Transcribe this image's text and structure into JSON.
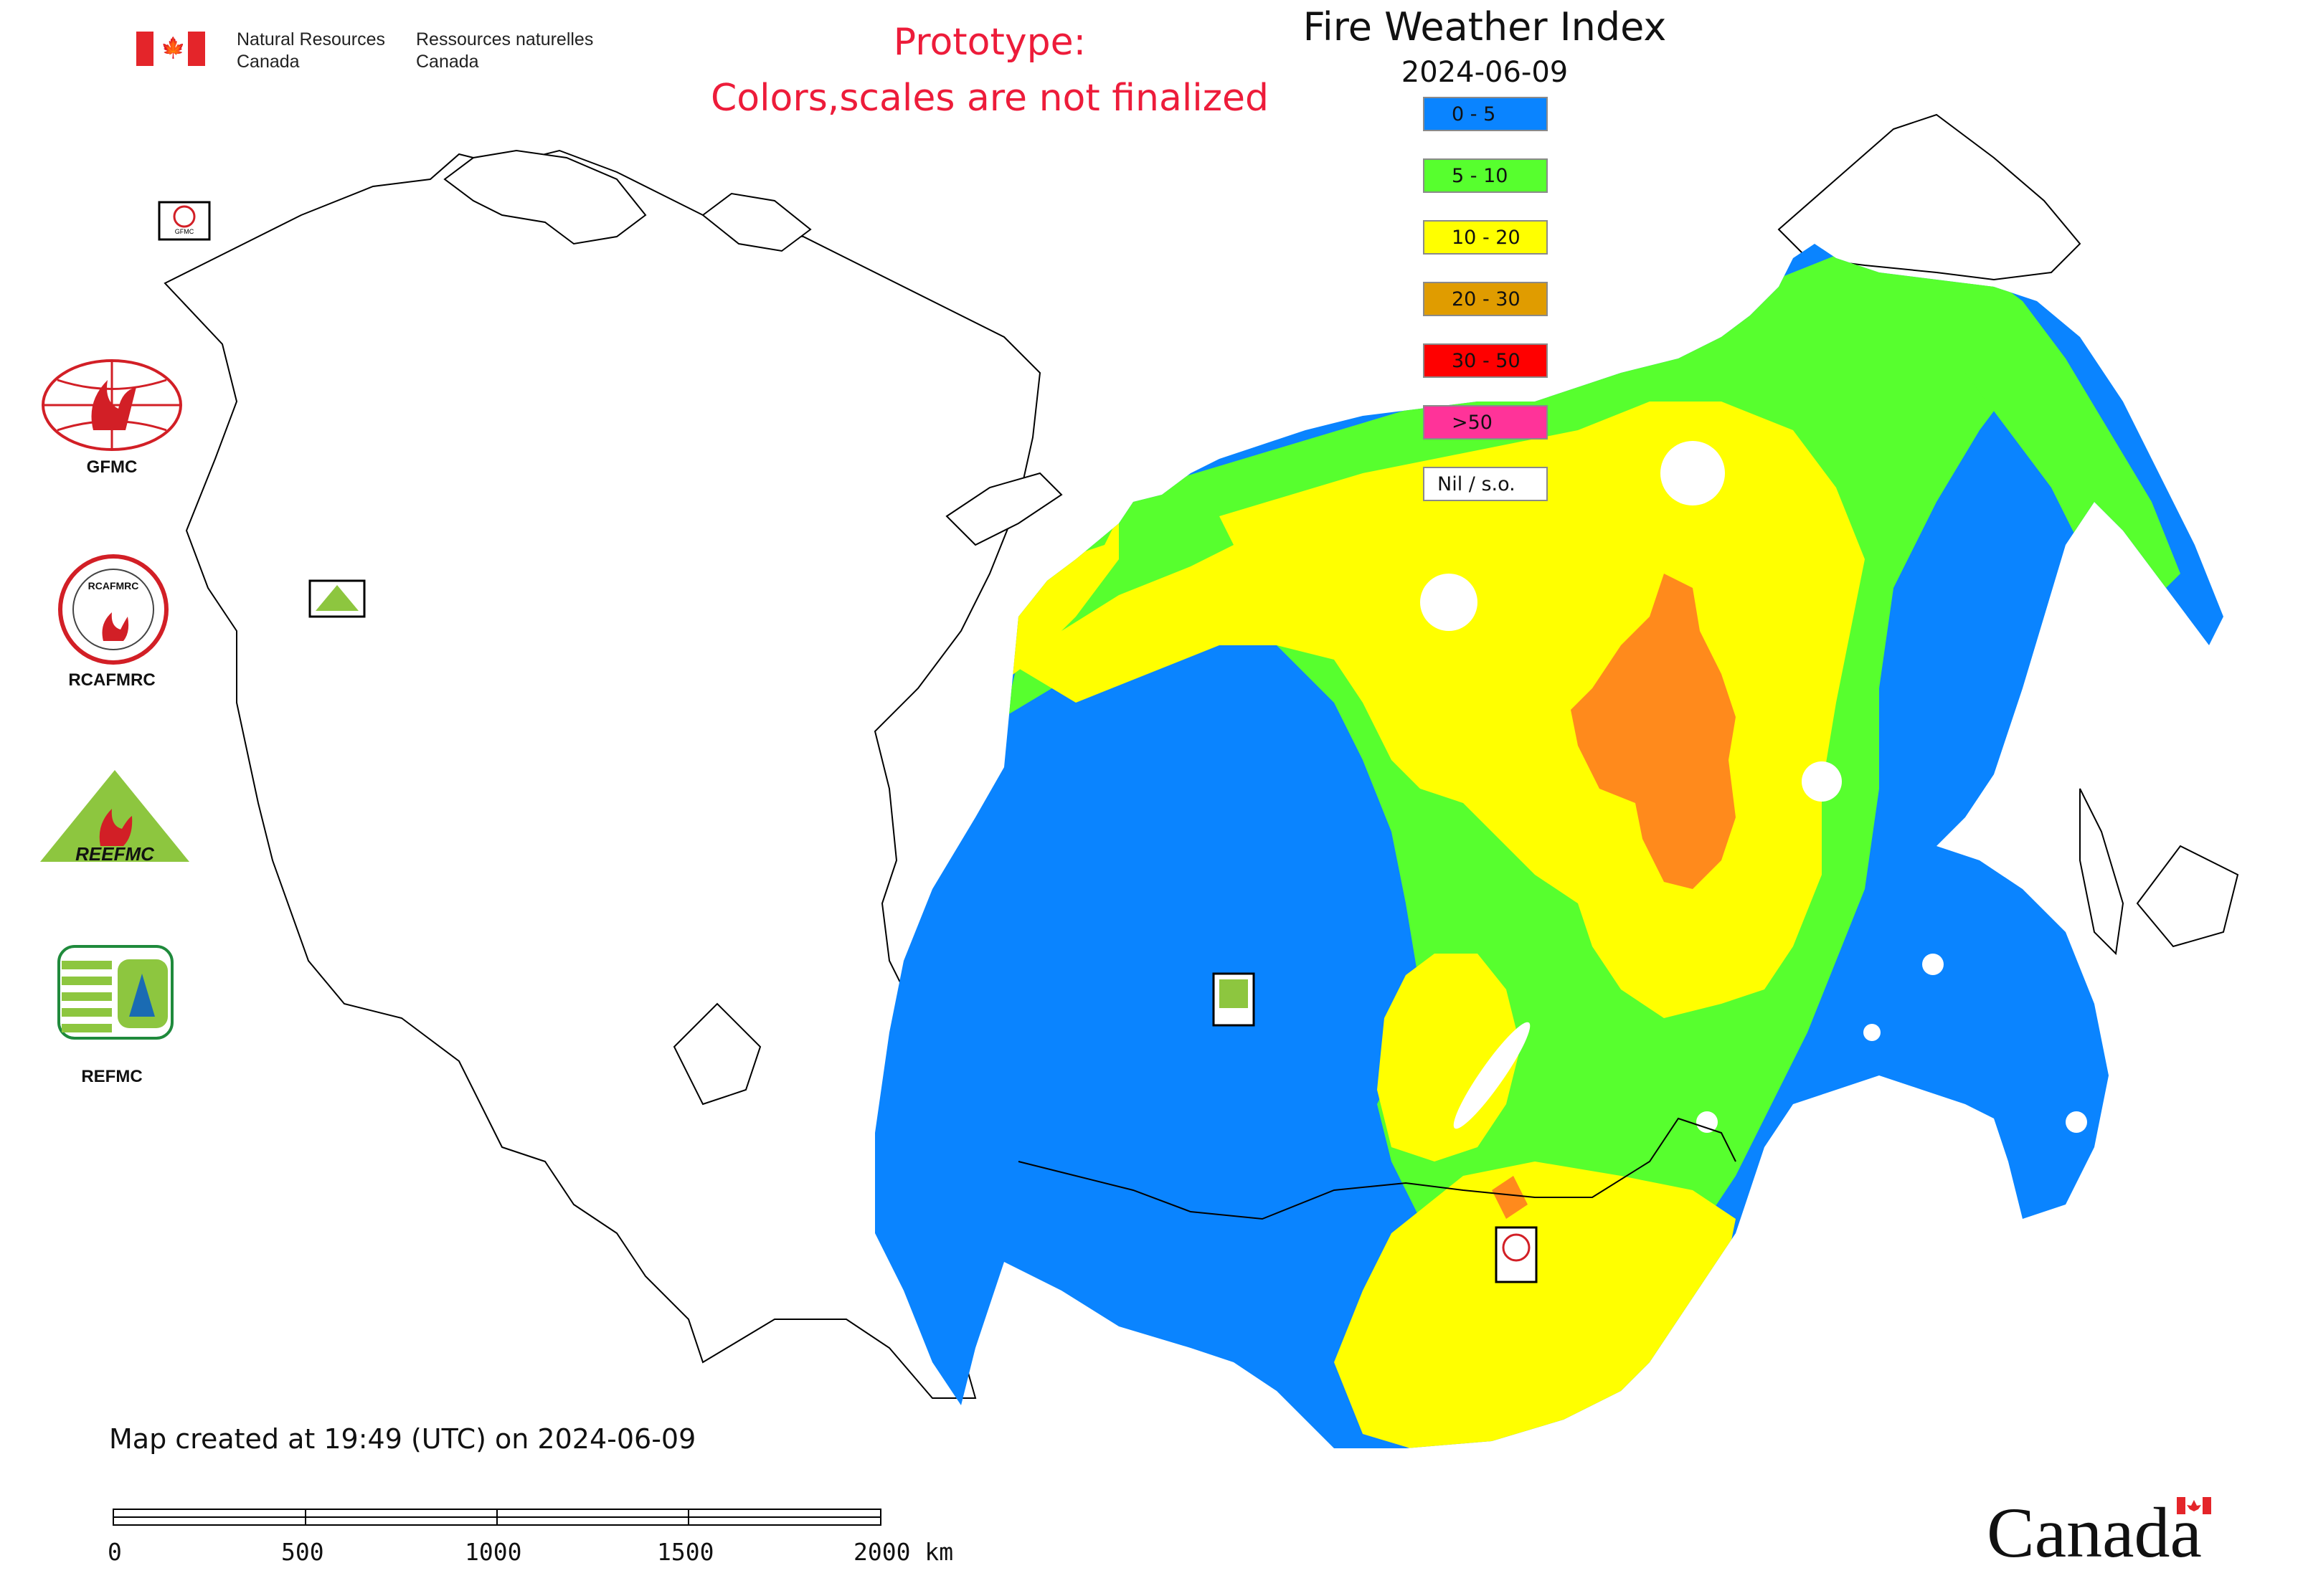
{
  "header": {
    "department_en": "Natural Resources\nCanada",
    "department_fr": "Ressources naturelles\nCanada",
    "prototype_note_line1": "Prototype:",
    "prototype_note_line2": "Colors,scales are not finalized"
  },
  "map": {
    "title": "Fire Weather Index",
    "date": "2024-06-09",
    "footnote": "Map created at 19:49 (UTC) on 2024-06-09",
    "basemap_color": "#ffffff",
    "boundary_color": "#000000"
  },
  "legend": {
    "items": [
      {
        "label": "0 - 5",
        "color": "#0a84ff"
      },
      {
        "label": "5 - 10",
        "color": "#57ff2e"
      },
      {
        "label": "10 - 20",
        "color": "#ffff00"
      },
      {
        "label": "20 - 30",
        "color": "#e09c00"
      },
      {
        "label": "30 - 50",
        "color": "#ff0000"
      },
      {
        "label": ">50",
        "color": "#ff3399"
      },
      {
        "label": "Nil / s.o.",
        "color": "#ffffff"
      }
    ]
  },
  "logos": [
    {
      "caption": "GFMC",
      "icon": "gfmc-logo"
    },
    {
      "caption": "RCAFMRC",
      "icon": "rcafmrc-logo"
    },
    {
      "caption": "",
      "icon": "reefmc-logo",
      "wordmark": "REEFMC"
    },
    {
      "caption": "REFMC",
      "icon": "refmc-logo"
    }
  ],
  "scale_bar": {
    "ticks": [
      "0",
      "500",
      "1000",
      "1500",
      "2000 km"
    ]
  },
  "footer": {
    "wordmark": "Canada"
  }
}
